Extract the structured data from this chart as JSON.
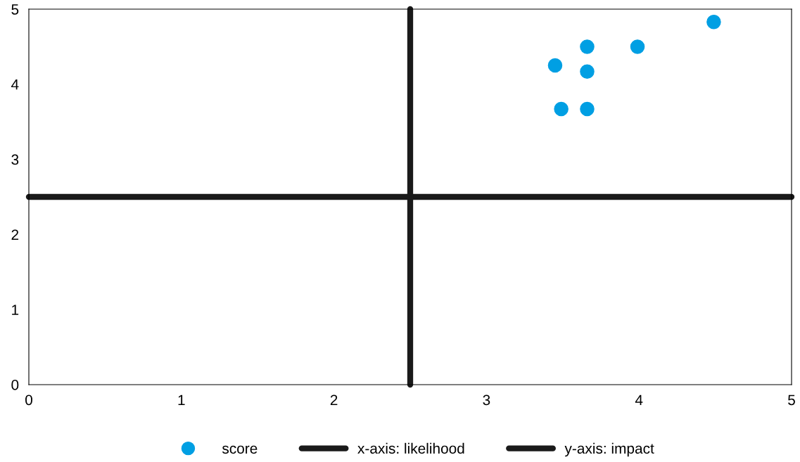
{
  "chart_data": {
    "type": "scatter",
    "series": [
      {
        "name": "score",
        "color": "#009fe3",
        "marker": "circle",
        "x": [
          3.45,
          3.66,
          3.99,
          4.49,
          3.66,
          3.49,
          3.66
        ],
        "values": [
          4.25,
          4.5,
          4.5,
          4.83,
          4.17,
          3.67,
          3.67
        ]
      },
      {
        "name": "x-axis: likelihood",
        "type": "line",
        "color": "#1a1a1a",
        "x": [
          0,
          5
        ],
        "values": [
          2.5,
          2.5
        ]
      },
      {
        "name": "y-axis: impact",
        "type": "line",
        "color": "#1a1a1a",
        "x": [
          2.5,
          2.5
        ],
        "values": [
          0,
          5
        ]
      }
    ],
    "xlim": [
      0,
      5
    ],
    "ylim": [
      0,
      5
    ],
    "xticks": [
      0,
      1,
      2,
      3,
      4,
      5
    ],
    "yticks": [
      0,
      1,
      2,
      3,
      4,
      5
    ],
    "grid": false,
    "legend": "bottom"
  }
}
